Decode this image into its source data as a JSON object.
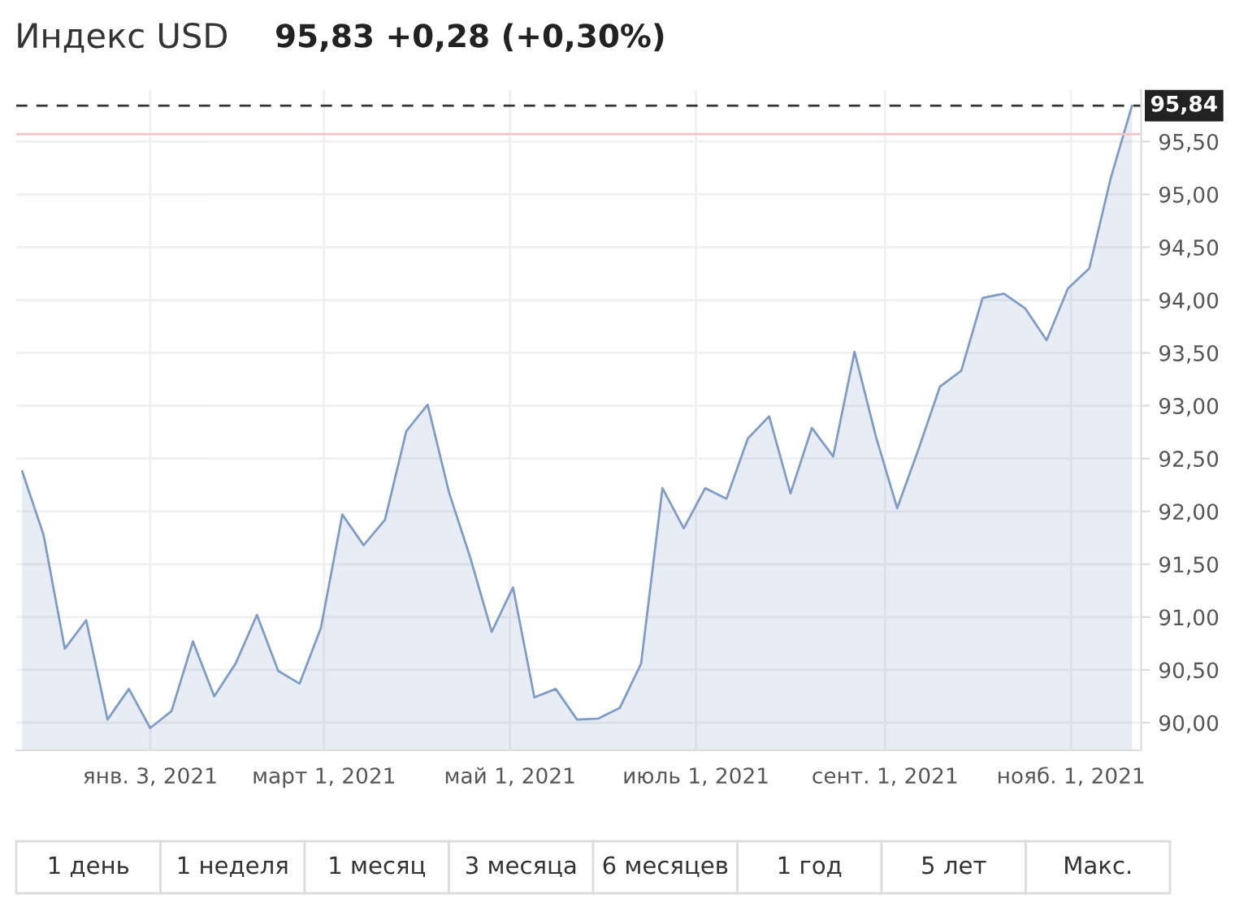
{
  "chart_data": {
    "type": "area",
    "title": "Индекс USD",
    "subtitle": "95,83 +0,28 (+0,30%)",
    "x": [
      "2020-11-22",
      "2020-11-29",
      "2020-12-06",
      "2020-12-13",
      "2020-12-20",
      "2020-12-27",
      "2021-01-03",
      "2021-01-10",
      "2021-01-17",
      "2021-01-24",
      "2021-01-31",
      "2021-02-07",
      "2021-02-14",
      "2021-02-21",
      "2021-02-28",
      "2021-03-07",
      "2021-03-14",
      "2021-03-21",
      "2021-03-28",
      "2021-04-04",
      "2021-04-11",
      "2021-04-18",
      "2021-04-25",
      "2021-05-02",
      "2021-05-09",
      "2021-05-16",
      "2021-05-23",
      "2021-05-30",
      "2021-06-06",
      "2021-06-13",
      "2021-06-20",
      "2021-06-27",
      "2021-07-04",
      "2021-07-11",
      "2021-07-18",
      "2021-07-25",
      "2021-08-01",
      "2021-08-08",
      "2021-08-15",
      "2021-08-22",
      "2021-08-29",
      "2021-09-05",
      "2021-09-12",
      "2021-09-19",
      "2021-09-26",
      "2021-10-03",
      "2021-10-10",
      "2021-10-17",
      "2021-10-24",
      "2021-10-31",
      "2021-11-07",
      "2021-11-14",
      "2021-11-21"
    ],
    "series": [
      {
        "color": "#7f9cc9",
        "values": [
          92.38,
          91.78,
          90.7,
          90.97,
          90.03,
          90.32,
          89.95,
          90.11,
          90.77,
          90.25,
          90.56,
          91.02,
          90.49,
          90.37,
          90.9,
          91.97,
          91.68,
          91.92,
          92.76,
          93.01,
          92.18,
          91.56,
          90.86,
          91.28,
          90.24,
          90.32,
          90.03,
          90.04,
          90.14,
          90.56,
          92.22,
          91.84,
          92.22,
          92.12,
          92.69,
          92.9,
          92.17,
          92.79,
          92.52,
          93.51,
          92.71,
          92.03,
          92.59,
          93.18,
          93.33,
          94.02,
          94.06,
          93.92,
          93.62,
          94.11,
          94.3,
          95.15,
          95.84
        ]
      }
    ],
    "xlim": [
      "2020-11-20",
      "2021-11-24"
    ],
    "xticks": [
      {
        "value": "2021-01-03",
        "label": "янв. 3, 2021"
      },
      {
        "value": "2021-03-01",
        "label": "март 1, 2021"
      },
      {
        "value": "2021-05-01",
        "label": "май 1, 2021"
      },
      {
        "value": "2021-07-01",
        "label": "июль 1, 2021"
      },
      {
        "value": "2021-09-01",
        "label": "сент. 1, 2021"
      },
      {
        "value": "2021-11-01",
        "label": "нояб. 1, 2021"
      }
    ],
    "ylim": [
      89.74,
      95.99
    ],
    "yticks": [
      {
        "value": 90,
        "label": "90,00"
      },
      {
        "value": 90.5,
        "label": "90,50"
      },
      {
        "value": 91,
        "label": "91,00"
      },
      {
        "value": 91.5,
        "label": "91,50"
      },
      {
        "value": 92,
        "label": "92,00"
      },
      {
        "value": 92.5,
        "label": "92,50"
      },
      {
        "value": 93,
        "label": "93,00"
      },
      {
        "value": 93.5,
        "label": "93,50"
      },
      {
        "value": 94,
        "label": "94,00"
      },
      {
        "value": 94.5,
        "label": "94,50"
      },
      {
        "value": 95,
        "label": "95,00"
      },
      {
        "value": 95.5,
        "label": "95,50"
      }
    ],
    "ref_lines": [
      {
        "axis": "y",
        "value": 95.84,
        "label": "95,84",
        "color": "#333333",
        "line_style": "dashed"
      },
      {
        "axis": "y",
        "value": 95.57,
        "label": null,
        "color": "#f2c4c8",
        "line_style": "solid"
      }
    ],
    "annotations": [
      "1 день",
      "1 неделя",
      "1 месяц",
      "3 месяца",
      "6 месяцев",
      "1 год",
      "5 лет",
      "Макс."
    ],
    "grid": true,
    "legend": false,
    "marker": "none",
    "line_style": "solid"
  }
}
